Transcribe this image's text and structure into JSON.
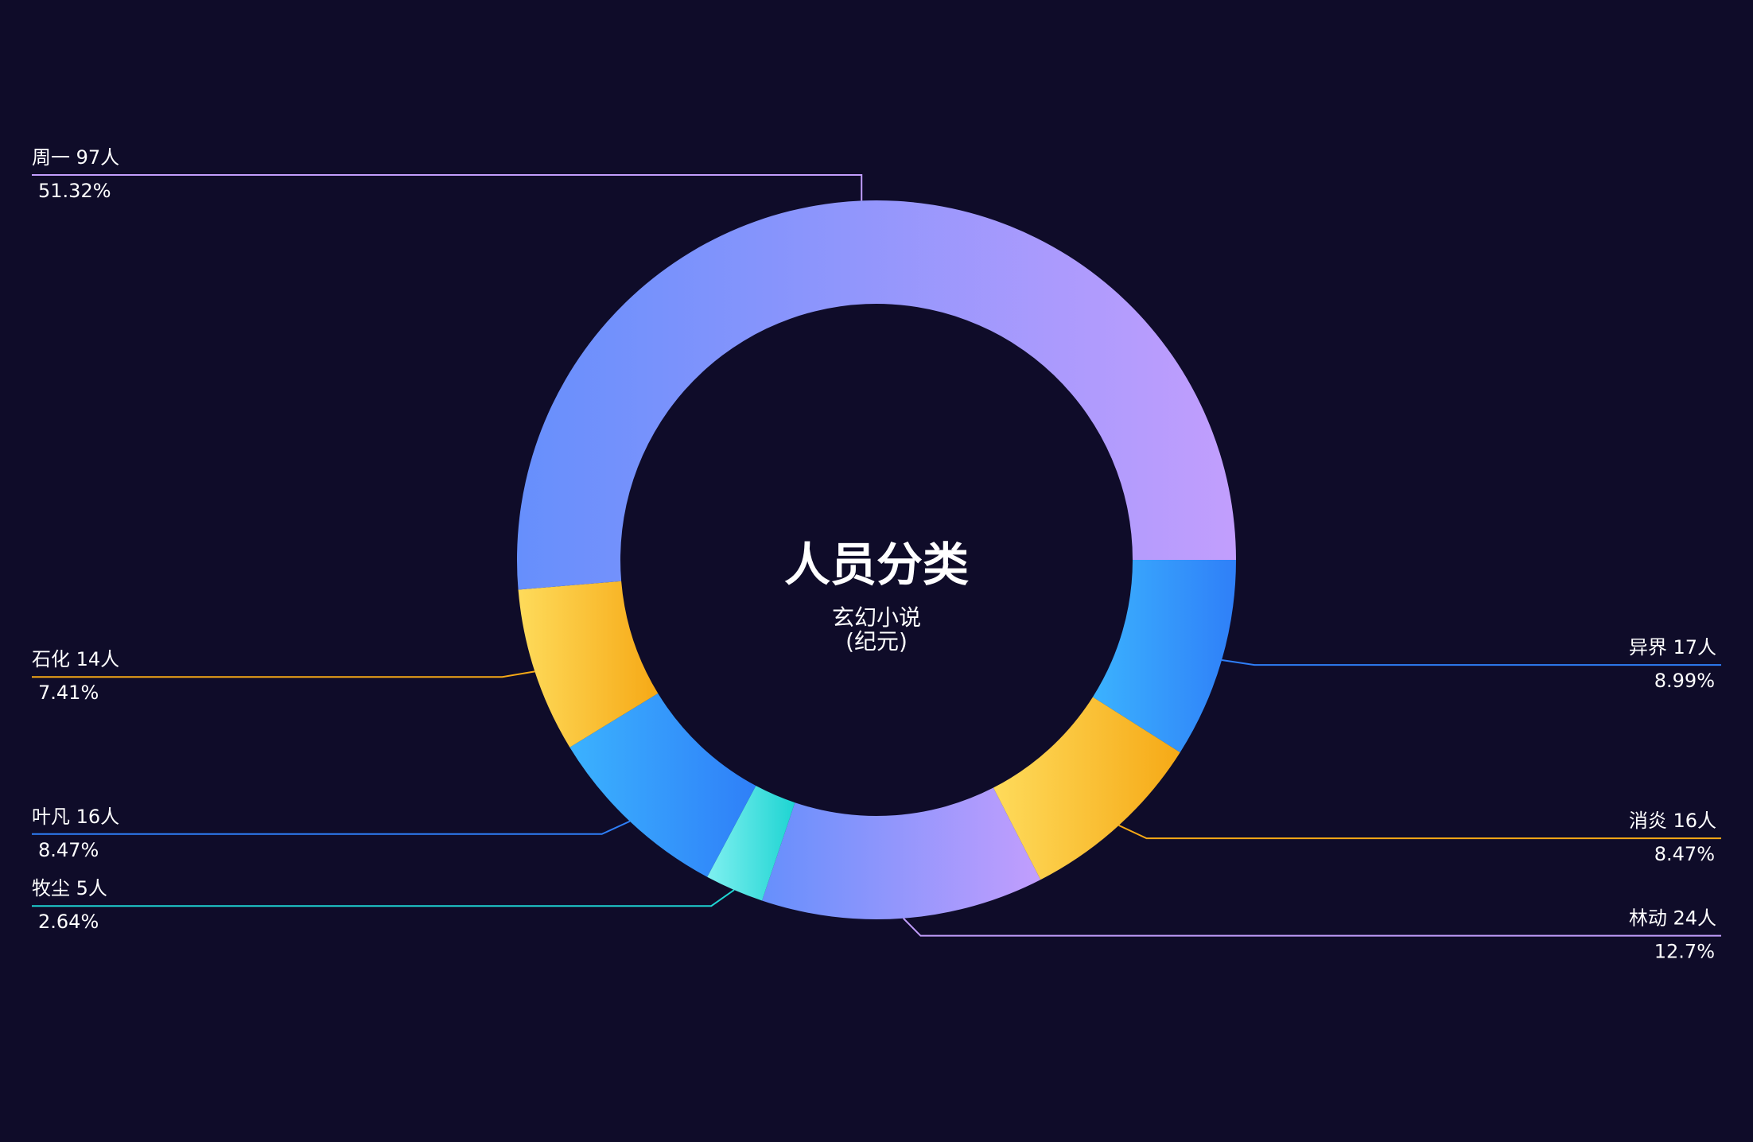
{
  "chart_data": {
    "type": "pie",
    "title": "人员分类",
    "subtitle_line1": "玄幻小说",
    "subtitle_line2": "(纪元)",
    "unit": "人",
    "slices": [
      {
        "name": "异界",
        "value": 17,
        "percent": "8.99%",
        "color_start": "#3bb2fe",
        "color_end": "#2f7ff8"
      },
      {
        "name": "消炎",
        "value": 16,
        "percent": "8.47%",
        "color_start": "#fedb5b",
        "color_end": "#f6a916"
      },
      {
        "name": "林动",
        "value": 24,
        "percent": "12.7%",
        "color_start": "#668ffc",
        "color_end": "#c29efd"
      },
      {
        "name": "牧尘",
        "value": 5,
        "percent": "2.64%",
        "color_start": "#7ff0f0",
        "color_end": "#1ed4d2"
      },
      {
        "name": "叶凡",
        "value": 16,
        "percent": "8.47%",
        "color_start": "#3bb2fe",
        "color_end": "#2f7ff8"
      },
      {
        "name": "石化",
        "value": 14,
        "percent": "7.41%",
        "color_start": "#fedb5b",
        "color_end": "#f6a916"
      },
      {
        "name": "周一",
        "value": 97,
        "percent": "51.32%",
        "color_start": "#668ffc",
        "color_end": "#c29efd"
      }
    ],
    "start_angle": "3 o'clock",
    "direction": "clockwise",
    "legend": "none",
    "background": "#0f0c29"
  }
}
